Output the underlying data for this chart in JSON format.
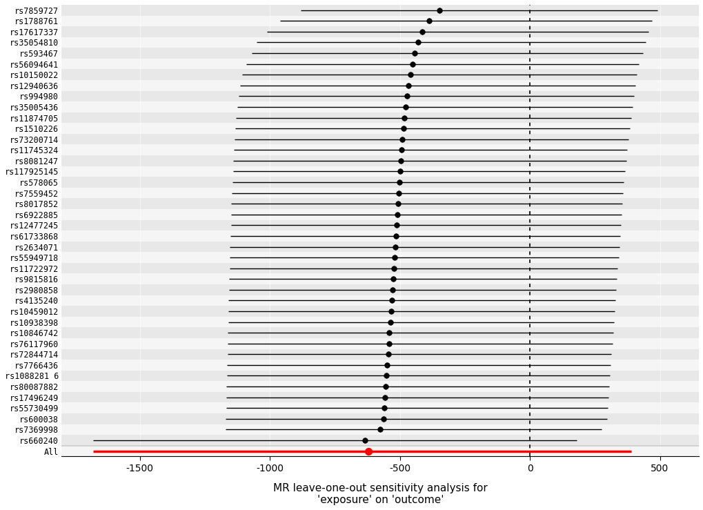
{
  "snps": [
    "rs7859727",
    "rs1788761",
    "rs17617337",
    "rs35054810",
    "rs593467",
    "rs56094641",
    "rs10150022",
    "rs12940636",
    "rs994980",
    "rs35005436",
    "rs11874705",
    "rs1510226",
    "rs73200714",
    "rs11745324",
    "rs8081247",
    "rs117925145",
    "rs578065",
    "rs7559452",
    "rs8017852",
    "rs6922885",
    "rs12477245",
    "rs61733868",
    "rs2634071",
    "rs55949718",
    "rs11722972",
    "rs9815816",
    "rs2980858",
    "rs4135240",
    "rs10459012",
    "rs10938398",
    "rs10846742",
    "rs76117960",
    "rs72844714",
    "rs7766436",
    "rs1088281 6",
    "rs80087882",
    "rs17496249",
    "rs55730499",
    "rs600038",
    "rs7369998",
    "rs660240"
  ],
  "estimates": [
    -348,
    -388,
    -413,
    -430,
    -442,
    -452,
    -460,
    -466,
    -472,
    -477,
    -482,
    -486,
    -490,
    -493,
    -496,
    -499,
    -502,
    -505,
    -507,
    -510,
    -513,
    -516,
    -518,
    -521,
    -523,
    -526,
    -529,
    -531,
    -534,
    -537,
    -540,
    -542,
    -545,
    -548,
    -551,
    -554,
    -557,
    -560,
    -563,
    -575,
    -635
  ],
  "ci_low": [
    -880,
    -960,
    -1010,
    -1050,
    -1070,
    -1090,
    -1105,
    -1115,
    -1120,
    -1125,
    -1130,
    -1133,
    -1136,
    -1138,
    -1140,
    -1142,
    -1144,
    -1146,
    -1148,
    -1149,
    -1150,
    -1152,
    -1153,
    -1154,
    -1155,
    -1156,
    -1157,
    -1158,
    -1159,
    -1160,
    -1161,
    -1162,
    -1163,
    -1164,
    -1165,
    -1166,
    -1167,
    -1168,
    -1169,
    -1170,
    -1680
  ],
  "ci_high": [
    490,
    470,
    455,
    445,
    435,
    420,
    410,
    405,
    400,
    395,
    390,
    385,
    380,
    375,
    370,
    365,
    362,
    359,
    356,
    353,
    350,
    347,
    344,
    341,
    338,
    335,
    332,
    329,
    326,
    323,
    320,
    317,
    314,
    311,
    308,
    305,
    302,
    300,
    297,
    275,
    180
  ],
  "all_estimate": -620,
  "all_ci_low": -1680,
  "all_ci_high": 390,
  "xlim": [
    -1800,
    650
  ],
  "xticks": [
    -1500,
    -1000,
    -500,
    0,
    500
  ],
  "vline_x": 0,
  "point_color": "#000000",
  "all_color": "#FF0000",
  "bg_color1": "#E8E8E8",
  "bg_color2": "#F5F5F5",
  "separator_color": "#CCCCCC"
}
